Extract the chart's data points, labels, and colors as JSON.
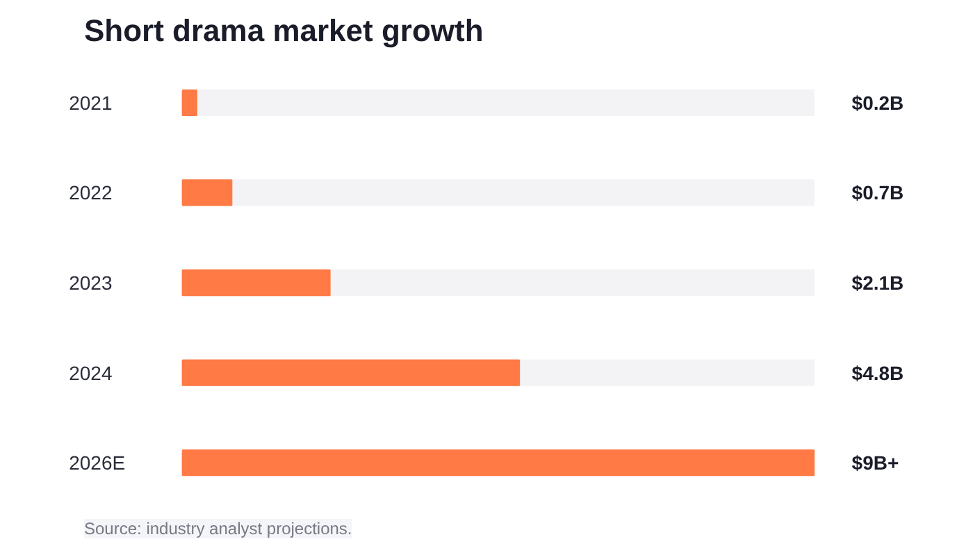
{
  "chart_data": {
    "type": "bar",
    "orientation": "horizontal",
    "title": "Short drama market growth",
    "categories": [
      "2021",
      "2022",
      "2023",
      "2024",
      "2026E"
    ],
    "values": [
      0.2,
      0.7,
      2.1,
      4.8,
      9
    ],
    "value_labels": [
      "$0.2B",
      "$0.7B",
      "$2.1B",
      "$4.8B",
      "$9B+"
    ],
    "color": "#ff7a45",
    "grid": false,
    "annotations": [
      "Source: industry analyst projections."
    ]
  }
}
